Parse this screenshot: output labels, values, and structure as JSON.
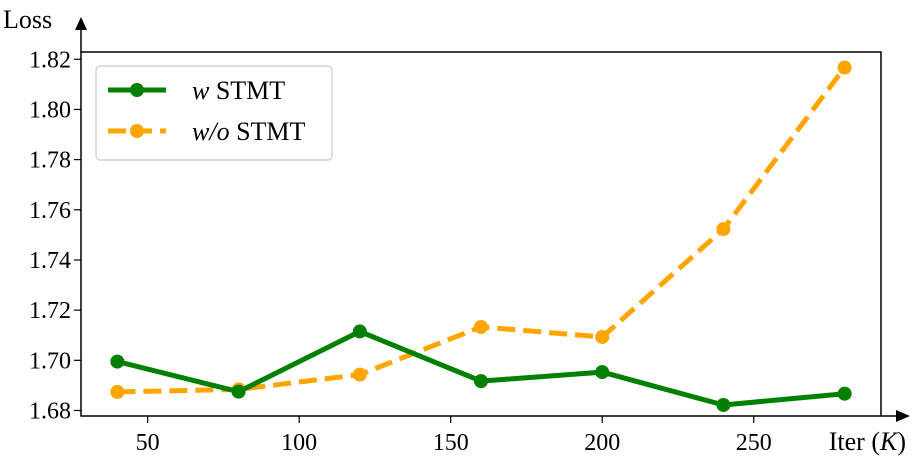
{
  "chart_data": {
    "type": "line",
    "x": [
      40,
      80,
      120,
      160,
      200,
      240,
      280
    ],
    "series": [
      {
        "name_prefix": "w",
        "name_suffix": " STMT",
        "values": [
          1.6995,
          1.6875,
          1.7115,
          1.6917,
          1.6953,
          1.6822,
          1.6867
        ],
        "color": "#008000",
        "style": "solid"
      },
      {
        "name_prefix": "w/o",
        "name_suffix": " STMT",
        "values": [
          1.6874,
          1.6884,
          1.6943,
          1.7133,
          1.7093,
          1.7523,
          1.8167
        ],
        "color": "#FFA500",
        "style": "dashed"
      }
    ],
    "ylabel": "Loss",
    "xlabel_main": "Iter (",
    "xlabel_var": "K",
    "xlabel_close": ")",
    "xlim": [
      28,
      292
    ],
    "ylim": [
      1.6778,
      1.8229
    ],
    "xticks": [
      50,
      100,
      150,
      200,
      250
    ],
    "yticks": [
      1.68,
      1.7,
      1.72,
      1.74,
      1.76,
      1.78,
      1.8,
      1.82
    ],
    "ytick_labels": [
      "1.68",
      "1.70",
      "1.72",
      "1.74",
      "1.76",
      "1.78",
      "1.80",
      "1.82"
    ],
    "legend_position": "top-left",
    "grid": false
  }
}
